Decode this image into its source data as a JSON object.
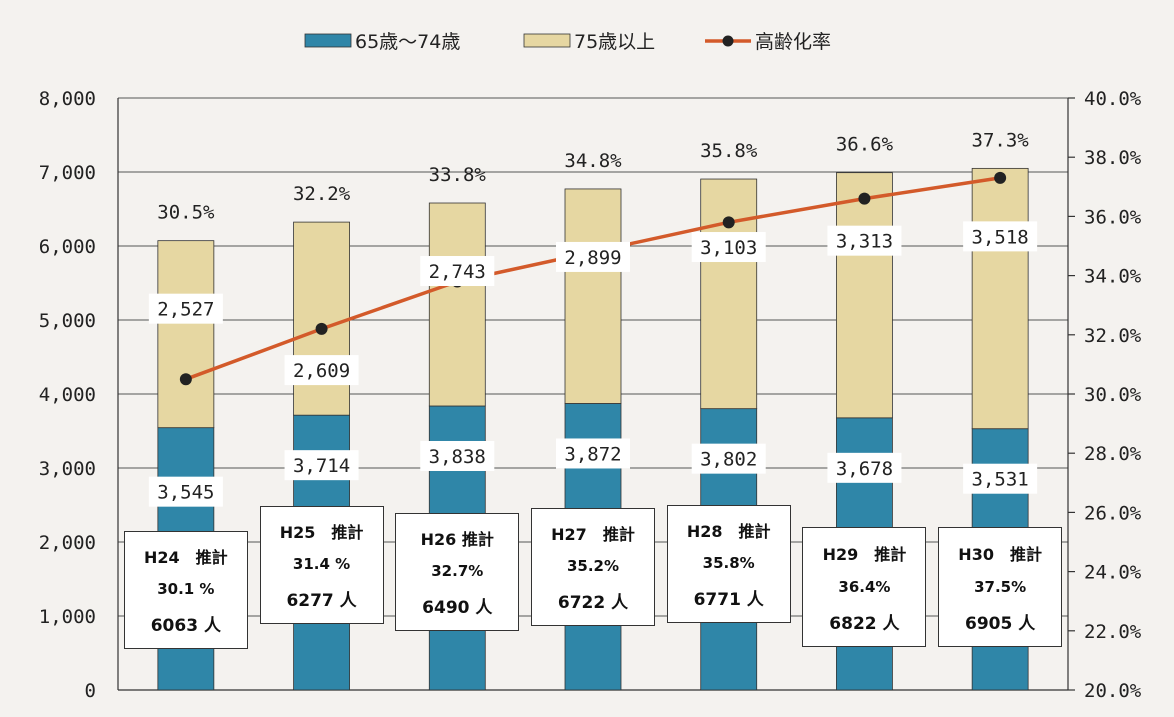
{
  "chart_data": {
    "type": "bar",
    "stacked": true,
    "categories": [
      "H24",
      "H25",
      "H26",
      "H27",
      "H28",
      "H29",
      "H30"
    ],
    "series": [
      {
        "name": "65歳〜74歳",
        "values": [
          3545,
          3714,
          3838,
          3872,
          3802,
          3678,
          3531
        ],
        "labels": [
          "3,545",
          "3,714",
          "3,838",
          "3,872",
          "3,802",
          "3,678",
          "3,531"
        ],
        "color": "#2f86a8"
      },
      {
        "name": "75歳以上",
        "values": [
          2527,
          2609,
          2743,
          2899,
          3103,
          3313,
          3518
        ],
        "labels": [
          "2,527",
          "2,609",
          "2,743",
          "2,899",
          "3,103",
          "3,313",
          "3,518"
        ],
        "color": "#e6d7a2"
      },
      {
        "name": "高齢化率",
        "type": "line",
        "axis": "right",
        "values": [
          30.5,
          32.2,
          33.8,
          34.8,
          35.8,
          36.6,
          37.3
        ],
        "labels": [
          "30.5%",
          "32.2%",
          "33.8%",
          "34.8%",
          "35.8%",
          "36.6%",
          "37.3%"
        ],
        "color": "#d35a2a",
        "marker": "#222222"
      }
    ],
    "y_left": {
      "range": [
        0,
        8000
      ],
      "ticks": [
        "0",
        "1,000",
        "2,000",
        "3,000",
        "4,000",
        "5,000",
        "6,000",
        "7,000",
        "8,000"
      ]
    },
    "y_right": {
      "range": [
        20.0,
        40.0
      ],
      "ticks": [
        "20.0%",
        "22.0%",
        "24.0%",
        "26.0%",
        "28.0%",
        "30.0%",
        "32.0%",
        "34.0%",
        "36.0%",
        "38.0%",
        "40.0%"
      ]
    },
    "grid": true,
    "legend_position": "top",
    "estimates": [
      {
        "title": "H24　推計",
        "rate": "30.1 %",
        "pop": "6063 人"
      },
      {
        "title": "H25　推計",
        "rate": "31.4 %",
        "pop": "6277 人"
      },
      {
        "title": "H26 推計",
        "rate": "32.7%",
        "pop": "6490 人"
      },
      {
        "title": "H27　推計",
        "rate": "35.2%",
        "pop": "6722 人"
      },
      {
        "title": "H28　推計",
        "rate": "35.8%",
        "pop": "6771 人"
      },
      {
        "title": "H29　推計",
        "rate": "36.4%",
        "pop": "6822 人"
      },
      {
        "title": "H30　推計",
        "rate": "37.5%",
        "pop": "6905 人"
      }
    ]
  }
}
